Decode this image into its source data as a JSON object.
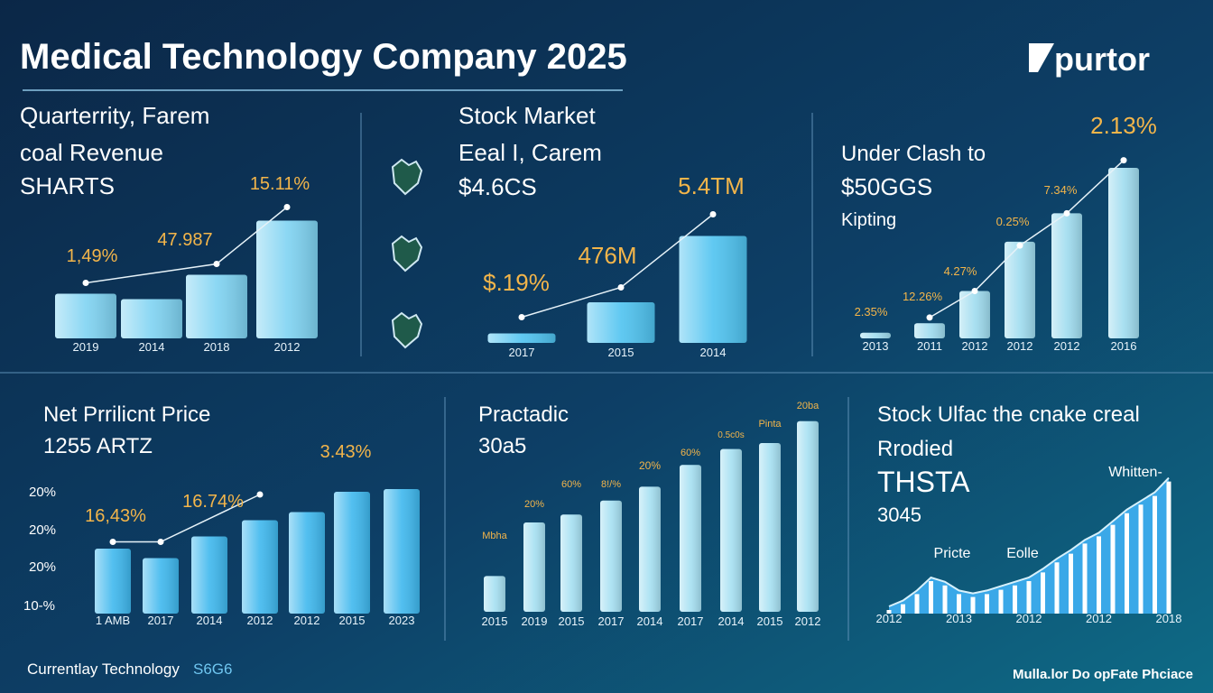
{
  "header": {
    "title": "Medical Technology Company 2025",
    "logo": "purtor"
  },
  "footer": {
    "left": "Currentlay Technology",
    "left_code": "S6G6",
    "right": "Mulla.lor Do opFate Phciace"
  },
  "chart_data": [
    {
      "type": "bar",
      "title_lines": [
        "Quarterrity, Farem",
        "coal Revenue",
        "SHARTS"
      ],
      "categories": [
        "2019",
        "2014",
        "2018",
        "2012"
      ],
      "values": [
        33,
        29,
        47,
        87
      ],
      "trend": [
        41,
        null,
        55,
        97
      ],
      "ylim": [
        0,
        100
      ],
      "color": "#7fd3f2",
      "annotations": [
        "1,49%",
        "47.987",
        "15.11%"
      ]
    },
    {
      "type": "bar",
      "title_lines": [
        "Stock Market",
        "Eeal I, Carem",
        "$4.6CS"
      ],
      "categories": [
        "2017",
        "2015",
        "2014"
      ],
      "values": [
        7,
        30,
        79
      ],
      "trend": [
        19,
        41,
        95
      ],
      "ylim": [
        0,
        100
      ],
      "color": "#4fc3f0",
      "annotations": [
        "$.19%",
        "476M",
        "5.4TM"
      ]
    },
    {
      "type": "bar",
      "title_lines": [
        "Under Clash to",
        "$50GGS",
        "Kipting"
      ],
      "categories": [
        "2013",
        "2011",
        "2012",
        "2012",
        "2012",
        "2016"
      ],
      "values": [
        3,
        8,
        25,
        51,
        66,
        90
      ],
      "trend": [
        null,
        11,
        25,
        49,
        66,
        94
      ],
      "ylim": [
        0,
        100
      ],
      "color": "#9fdcef",
      "annotations": [
        "2.35%",
        "12.26%",
        "4.27%",
        "0.25%",
        "7.34%",
        "2.13%"
      ]
    },
    {
      "type": "bar",
      "title_lines": [
        "Net Prrilicnt Price",
        "1255 ARTZ"
      ],
      "categories": [
        "1 AMB",
        "2017",
        "2014",
        "2012",
        "2012",
        "2015",
        "2023"
      ],
      "values": [
        48,
        41,
        57,
        69,
        75,
        90,
        92
      ],
      "trend": [
        53,
        53,
        null,
        88,
        null,
        null,
        null
      ],
      "ylim": [
        0,
        100
      ],
      "color": "#3fb8ee",
      "annotations": [
        "16,43%",
        "16.74%",
        "3.43%"
      ],
      "side_labels": [
        "20%",
        "20%",
        "20%",
        "10-%"
      ]
    },
    {
      "type": "bar",
      "title_lines": [
        "Practadic",
        "30a5"
      ],
      "categories": [
        "2015",
        "2019",
        "2015",
        "2017",
        "2014",
        "2017",
        "2014",
        "2015",
        "2012"
      ],
      "values": [
        18,
        45,
        49,
        56,
        63,
        74,
        82,
        85,
        96
      ],
      "ylim": [
        0,
        100
      ],
      "color": "#a6e0f2",
      "annotations": [
        "Mbha",
        "20%",
        "60%",
        "8!/%",
        "20%",
        "60%",
        "0.5c0s",
        "Pinta",
        "20ba"
      ]
    },
    {
      "type": "area",
      "title_lines": [
        "Stock Ulfac the cnake creal",
        "Rrodied",
        "THSTA",
        "3045"
      ],
      "categories": [
        "2012",
        null,
        null,
        null,
        null,
        "2013",
        null,
        null,
        null,
        null,
        "2012",
        null,
        null,
        null,
        null,
        "2012",
        null,
        null,
        null,
        null,
        "2018"
      ],
      "values": [
        5,
        9,
        16,
        25,
        22,
        16,
        14,
        16,
        19,
        22,
        25,
        31,
        38,
        44,
        51,
        56,
        64,
        72,
        78,
        84,
        94
      ],
      "ylim": [
        0,
        100
      ],
      "color": "#3aa8e8",
      "annotations": [
        "Pricte",
        "Eolle",
        "Whitten-"
      ]
    }
  ]
}
